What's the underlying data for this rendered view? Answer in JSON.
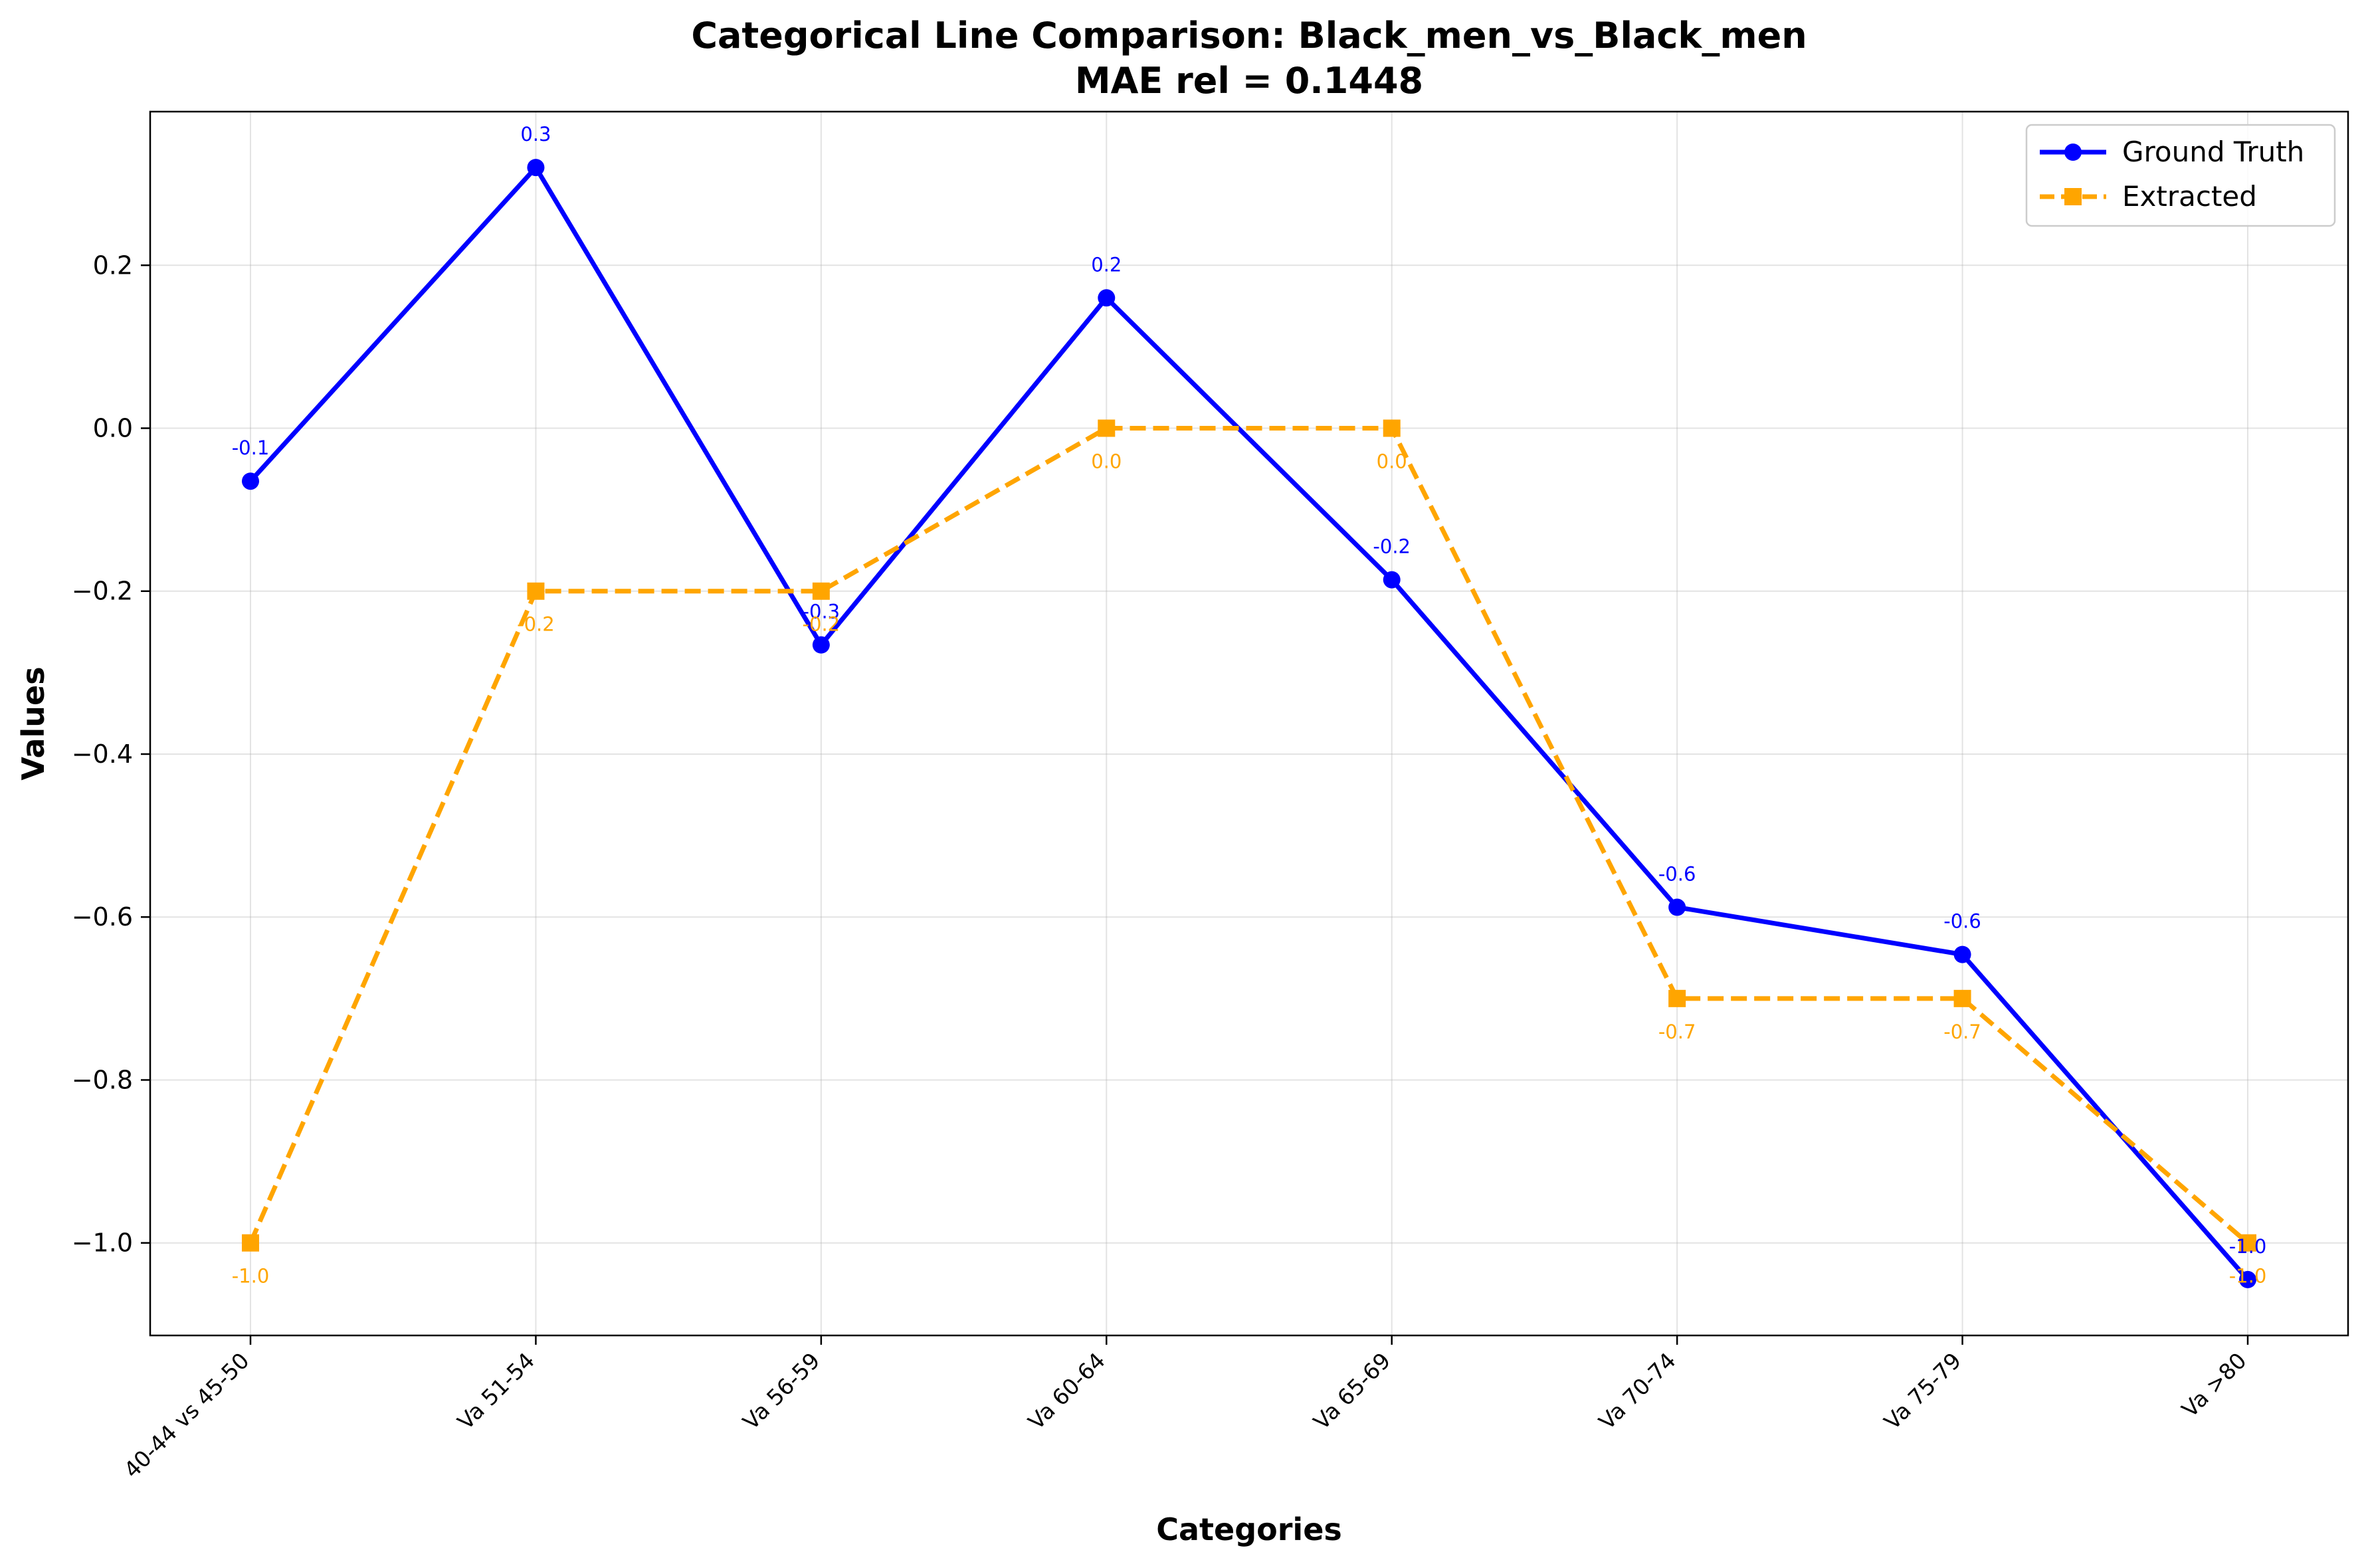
{
  "chart_data": {
    "type": "line",
    "title": "Categorical Line Comparison: Black_men_vs_Black_men",
    "subtitle": "MAE rel = 0.1448",
    "xlabel": "Categories",
    "ylabel": "Values",
    "categories": [
      "40-44 vs 45-50",
      "Va 51-54",
      "Va 56-59",
      "Va 60-64",
      "Va 65-69",
      "Va 70-74",
      "Va 75-79",
      "Va >80"
    ],
    "ylim": [
      -1.1136,
      0.3886
    ],
    "yticks": [
      "0.2",
      "0.0",
      "−0.2",
      "−0.4",
      "−0.6",
      "−0.8",
      "−1.0"
    ],
    "ytick_values": [
      0.2,
      0.0,
      -0.2,
      -0.4,
      -0.6,
      -0.8,
      -1.0
    ],
    "grid": true,
    "legend_position": "top-right",
    "series": [
      {
        "name": "Ground Truth",
        "color": "#0000ff",
        "marker": "circle",
        "line_style": "solid",
        "values": [
          -0.065,
          0.32,
          -0.266,
          0.16,
          -0.186,
          -0.588,
          -0.646,
          -1.045
        ],
        "labels": [
          "-0.1",
          "0.3",
          "-0.3",
          "0.2",
          "-0.2",
          "-0.6",
          "-0.6",
          "-1.0"
        ]
      },
      {
        "name": "Extracted",
        "color": "#ffa500",
        "marker": "square",
        "line_style": "dashed",
        "values": [
          -1.0,
          -0.2,
          -0.2,
          0.0,
          0.0,
          -0.7,
          -0.7,
          -1.0
        ],
        "labels": [
          "-1.0",
          "-0.2",
          "-0.2",
          "0.0",
          "0.0",
          "-0.7",
          "-0.7",
          "-1.0"
        ]
      }
    ]
  }
}
